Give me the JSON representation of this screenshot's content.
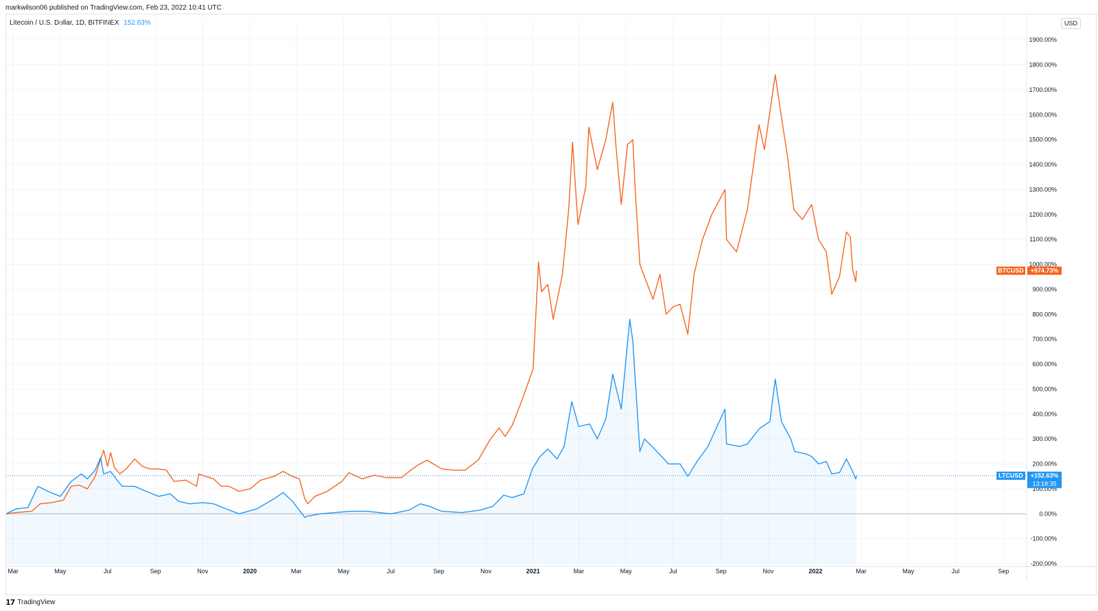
{
  "header": {
    "published": "markwilson06 published on TradingView.com, Feb 23, 2022 10:41 UTC"
  },
  "legend": {
    "symbol": "Litecoin / U.S. Dollar, 1D, BITFINEX",
    "change": "152.63%"
  },
  "currency_badge": "USD",
  "footer": {
    "brand": "TradingView",
    "logo_mark": "17"
  },
  "colors": {
    "btc": "#f7641b",
    "ltc": "#2196f3",
    "ltc_fill": "rgba(33,150,243,0.06)",
    "grid": "#f0f3fa",
    "zero_line": "#b2b5be",
    "dotted": "#2196f3"
  },
  "chart_data": {
    "type": "line",
    "title": "Litecoin / U.S. Dollar, 1D, BITFINEX",
    "ylabel": "",
    "xlabel": "",
    "y_scale": "percent",
    "ylim": [
      -200,
      1950
    ],
    "y_ticks": [
      -200,
      -100,
      0,
      100,
      200,
      300,
      400,
      500,
      600,
      700,
      800,
      900,
      1000,
      1100,
      1200,
      1300,
      1400,
      1500,
      1600,
      1700,
      1800,
      1900
    ],
    "y_tick_labels": [
      "-200.00%",
      "-100.00%",
      "0.00%",
      "100.00%",
      "200.00%",
      "300.00%",
      "400.00%",
      "500.00%",
      "600.00%",
      "700.00%",
      "800.00%",
      "900.00%",
      "1000.00%",
      "1100.00%",
      "1200.00%",
      "1300.00%",
      "1400.00%",
      "1500.00%",
      "1600.00%",
      "1700.00%",
      "1800.00%",
      "1900.00%"
    ],
    "xlim": [
      "2019-02-20",
      "2022-09-30"
    ],
    "x_ticks": [
      {
        "date": "2019-03-01",
        "label": "Mar",
        "bold": false
      },
      {
        "date": "2019-05-01",
        "label": "May",
        "bold": false
      },
      {
        "date": "2019-07-01",
        "label": "Jul",
        "bold": false
      },
      {
        "date": "2019-09-01",
        "label": "Sep",
        "bold": false
      },
      {
        "date": "2019-11-01",
        "label": "Nov",
        "bold": false
      },
      {
        "date": "2020-01-01",
        "label": "2020",
        "bold": true
      },
      {
        "date": "2020-03-01",
        "label": "Mar",
        "bold": false
      },
      {
        "date": "2020-05-01",
        "label": "May",
        "bold": false
      },
      {
        "date": "2020-07-01",
        "label": "Jul",
        "bold": false
      },
      {
        "date": "2020-09-01",
        "label": "Sep",
        "bold": false
      },
      {
        "date": "2020-11-01",
        "label": "Nov",
        "bold": false
      },
      {
        "date": "2021-01-01",
        "label": "2021",
        "bold": true
      },
      {
        "date": "2021-03-01",
        "label": "Mar",
        "bold": false
      },
      {
        "date": "2021-05-01",
        "label": "May",
        "bold": false
      },
      {
        "date": "2021-07-01",
        "label": "Jul",
        "bold": false
      },
      {
        "date": "2021-09-01",
        "label": "Sep",
        "bold": false
      },
      {
        "date": "2021-11-01",
        "label": "Nov",
        "bold": false
      },
      {
        "date": "2022-01-01",
        "label": "2022",
        "bold": true
      },
      {
        "date": "2022-03-01",
        "label": "Mar",
        "bold": false
      },
      {
        "date": "2022-05-01",
        "label": "May",
        "bold": false
      },
      {
        "date": "2022-07-01",
        "label": "Jul",
        "bold": false
      },
      {
        "date": "2022-09-01",
        "label": "Sep",
        "bold": false
      }
    ],
    "grid": true,
    "series": [
      {
        "name": "BTCUSD",
        "badge": "+974.73%",
        "last": 974.73,
        "points": [
          [
            "2019-02-20",
            0
          ],
          [
            "2019-03-05",
            5
          ],
          [
            "2019-03-25",
            10
          ],
          [
            "2019-04-05",
            40
          ],
          [
            "2019-04-20",
            45
          ],
          [
            "2019-05-05",
            55
          ],
          [
            "2019-05-15",
            110
          ],
          [
            "2019-05-25",
            115
          ],
          [
            "2019-06-05",
            100
          ],
          [
            "2019-06-15",
            150
          ],
          [
            "2019-06-20",
            200
          ],
          [
            "2019-06-26",
            255
          ],
          [
            "2019-07-01",
            190
          ],
          [
            "2019-07-05",
            245
          ],
          [
            "2019-07-10",
            185
          ],
          [
            "2019-07-17",
            160
          ],
          [
            "2019-07-25",
            180
          ],
          [
            "2019-08-05",
            220
          ],
          [
            "2019-08-15",
            190
          ],
          [
            "2019-08-25",
            180
          ],
          [
            "2019-09-05",
            180
          ],
          [
            "2019-09-15",
            175
          ],
          [
            "2019-09-25",
            130
          ],
          [
            "2019-10-10",
            135
          ],
          [
            "2019-10-24",
            110
          ],
          [
            "2019-10-27",
            160
          ],
          [
            "2019-11-05",
            150
          ],
          [
            "2019-11-15",
            140
          ],
          [
            "2019-11-25",
            110
          ],
          [
            "2019-12-05",
            110
          ],
          [
            "2019-12-18",
            90
          ],
          [
            "2020-01-01",
            100
          ],
          [
            "2020-01-15",
            135
          ],
          [
            "2020-02-01",
            150
          ],
          [
            "2020-02-13",
            170
          ],
          [
            "2020-02-25",
            150
          ],
          [
            "2020-03-05",
            140
          ],
          [
            "2020-03-12",
            60
          ],
          [
            "2020-03-16",
            40
          ],
          [
            "2020-03-25",
            70
          ],
          [
            "2020-04-10",
            90
          ],
          [
            "2020-04-29",
            130
          ],
          [
            "2020-05-08",
            165
          ],
          [
            "2020-05-25",
            140
          ],
          [
            "2020-06-10",
            155
          ],
          [
            "2020-06-25",
            145
          ],
          [
            "2020-07-15",
            145
          ],
          [
            "2020-07-27",
            175
          ],
          [
            "2020-08-05",
            195
          ],
          [
            "2020-08-17",
            215
          ],
          [
            "2020-09-05",
            180
          ],
          [
            "2020-09-20",
            175
          ],
          [
            "2020-10-05",
            175
          ],
          [
            "2020-10-22",
            215
          ],
          [
            "2020-11-05",
            290
          ],
          [
            "2020-11-18",
            345
          ],
          [
            "2020-11-26",
            310
          ],
          [
            "2020-12-05",
            355
          ],
          [
            "2020-12-17",
            450
          ],
          [
            "2020-12-25",
            520
          ],
          [
            "2021-01-01",
            580
          ],
          [
            "2021-01-08",
            1010
          ],
          [
            "2021-01-12",
            890
          ],
          [
            "2021-01-20",
            920
          ],
          [
            "2021-01-27",
            780
          ],
          [
            "2021-02-08",
            960
          ],
          [
            "2021-02-16",
            1220
          ],
          [
            "2021-02-21",
            1490
          ],
          [
            "2021-02-28",
            1160
          ],
          [
            "2021-03-10",
            1310
          ],
          [
            "2021-03-14",
            1550
          ],
          [
            "2021-03-25",
            1380
          ],
          [
            "2021-04-05",
            1500
          ],
          [
            "2021-04-14",
            1650
          ],
          [
            "2021-04-18",
            1480
          ],
          [
            "2021-04-25",
            1240
          ],
          [
            "2021-05-03",
            1480
          ],
          [
            "2021-05-10",
            1500
          ],
          [
            "2021-05-13",
            1300
          ],
          [
            "2021-05-19",
            1000
          ],
          [
            "2021-05-25",
            950
          ],
          [
            "2021-06-05",
            860
          ],
          [
            "2021-06-14",
            960
          ],
          [
            "2021-06-22",
            800
          ],
          [
            "2021-07-01",
            830
          ],
          [
            "2021-07-10",
            840
          ],
          [
            "2021-07-20",
            720
          ],
          [
            "2021-07-28",
            960
          ],
          [
            "2021-08-08",
            1100
          ],
          [
            "2021-08-20",
            1200
          ],
          [
            "2021-09-06",
            1300
          ],
          [
            "2021-09-08",
            1100
          ],
          [
            "2021-09-21",
            1050
          ],
          [
            "2021-10-05",
            1220
          ],
          [
            "2021-10-20",
            1560
          ],
          [
            "2021-10-27",
            1460
          ],
          [
            "2021-11-10",
            1760
          ],
          [
            "2021-11-18",
            1590
          ],
          [
            "2021-11-26",
            1430
          ],
          [
            "2021-12-04",
            1220
          ],
          [
            "2021-12-15",
            1180
          ],
          [
            "2021-12-27",
            1240
          ],
          [
            "2022-01-05",
            1100
          ],
          [
            "2022-01-15",
            1050
          ],
          [
            "2022-01-22",
            880
          ],
          [
            "2022-02-01",
            950
          ],
          [
            "2022-02-10",
            1130
          ],
          [
            "2022-02-15",
            1110
          ],
          [
            "2022-02-18",
            980
          ],
          [
            "2022-02-22",
            930
          ],
          [
            "2022-02-23",
            974.73
          ]
        ]
      },
      {
        "name": "LTCUSD",
        "badge": "+152.63%",
        "badge_time": "13:18:35",
        "last": 152.63,
        "points": [
          [
            "2019-02-20",
            0
          ],
          [
            "2019-03-05",
            20
          ],
          [
            "2019-03-20",
            25
          ],
          [
            "2019-04-02",
            110
          ],
          [
            "2019-04-15",
            90
          ],
          [
            "2019-05-01",
            70
          ],
          [
            "2019-05-15",
            130
          ],
          [
            "2019-05-28",
            160
          ],
          [
            "2019-06-05",
            140
          ],
          [
            "2019-06-15",
            175
          ],
          [
            "2019-06-22",
            225
          ],
          [
            "2019-06-26",
            160
          ],
          [
            "2019-07-05",
            170
          ],
          [
            "2019-07-12",
            140
          ],
          [
            "2019-07-20",
            110
          ],
          [
            "2019-08-05",
            110
          ],
          [
            "2019-08-20",
            90
          ],
          [
            "2019-09-05",
            70
          ],
          [
            "2019-09-20",
            80
          ],
          [
            "2019-10-01",
            50
          ],
          [
            "2019-10-15",
            40
          ],
          [
            "2019-11-01",
            45
          ],
          [
            "2019-11-15",
            40
          ],
          [
            "2019-12-01",
            20
          ],
          [
            "2019-12-18",
            0
          ],
          [
            "2020-01-10",
            20
          ],
          [
            "2020-02-01",
            60
          ],
          [
            "2020-02-13",
            85
          ],
          [
            "2020-02-25",
            50
          ],
          [
            "2020-03-12",
            -15
          ],
          [
            "2020-03-14",
            -10
          ],
          [
            "2020-04-01",
            0
          ],
          [
            "2020-04-20",
            5
          ],
          [
            "2020-05-10",
            10
          ],
          [
            "2020-06-01",
            10
          ],
          [
            "2020-07-01",
            0
          ],
          [
            "2020-07-25",
            15
          ],
          [
            "2020-08-08",
            40
          ],
          [
            "2020-08-20",
            30
          ],
          [
            "2020-09-05",
            10
          ],
          [
            "2020-10-01",
            5
          ],
          [
            "2020-10-25",
            15
          ],
          [
            "2020-11-10",
            30
          ],
          [
            "2020-11-24",
            75
          ],
          [
            "2020-12-05",
            65
          ],
          [
            "2020-12-20",
            80
          ],
          [
            "2020-12-31",
            180
          ],
          [
            "2021-01-10",
            230
          ],
          [
            "2021-01-20",
            260
          ],
          [
            "2021-02-01",
            220
          ],
          [
            "2021-02-10",
            270
          ],
          [
            "2021-02-20",
            450
          ],
          [
            "2021-03-01",
            350
          ],
          [
            "2021-03-15",
            360
          ],
          [
            "2021-03-25",
            300
          ],
          [
            "2021-04-05",
            380
          ],
          [
            "2021-04-14",
            560
          ],
          [
            "2021-04-25",
            420
          ],
          [
            "2021-05-06",
            780
          ],
          [
            "2021-05-10",
            690
          ],
          [
            "2021-05-19",
            250
          ],
          [
            "2021-05-25",
            300
          ],
          [
            "2021-06-10",
            250
          ],
          [
            "2021-06-25",
            200
          ],
          [
            "2021-07-10",
            200
          ],
          [
            "2021-07-20",
            150
          ],
          [
            "2021-08-01",
            210
          ],
          [
            "2021-08-15",
            270
          ],
          [
            "2021-09-06",
            420
          ],
          [
            "2021-09-08",
            280
          ],
          [
            "2021-09-25",
            270
          ],
          [
            "2021-10-05",
            280
          ],
          [
            "2021-10-20",
            340
          ],
          [
            "2021-11-03",
            370
          ],
          [
            "2021-11-10",
            540
          ],
          [
            "2021-11-18",
            370
          ],
          [
            "2021-11-30",
            300
          ],
          [
            "2021-12-05",
            250
          ],
          [
            "2021-12-20",
            240
          ],
          [
            "2021-12-27",
            230
          ],
          [
            "2022-01-05",
            200
          ],
          [
            "2022-01-15",
            210
          ],
          [
            "2022-01-22",
            160
          ],
          [
            "2022-02-01",
            165
          ],
          [
            "2022-02-10",
            220
          ],
          [
            "2022-02-18",
            170
          ],
          [
            "2022-02-22",
            140
          ],
          [
            "2022-02-23",
            152.63
          ]
        ]
      }
    ]
  }
}
